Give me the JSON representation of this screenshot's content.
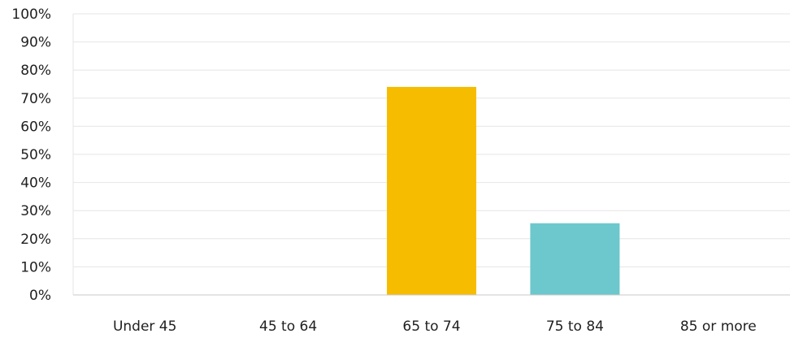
{
  "chart_data": {
    "type": "bar",
    "title": "",
    "xlabel": "",
    "ylabel": "",
    "categories": [
      "Under 45",
      "45 to 64",
      "65 to 74",
      "75 to 84",
      "85 or more"
    ],
    "values": [
      0,
      0,
      74,
      25.5,
      0
    ],
    "colors": [
      "#f6bd00",
      "#f6bd00",
      "#f6bd00",
      "#6cc8cc",
      "#6cc8cc"
    ],
    "ylim": [
      0,
      100
    ],
    "yticks": [
      {
        "value": 0,
        "label": "0%"
      },
      {
        "value": 10,
        "label": "10%"
      },
      {
        "value": 20,
        "label": "20%"
      },
      {
        "value": 30,
        "label": "30%"
      },
      {
        "value": 40,
        "label": "40%"
      },
      {
        "value": 50,
        "label": "50%"
      },
      {
        "value": 60,
        "label": "60%"
      },
      {
        "value": 70,
        "label": "70%"
      },
      {
        "value": 80,
        "label": "80%"
      },
      {
        "value": 90,
        "label": "90%"
      },
      {
        "value": 100,
        "label": "100%"
      }
    ],
    "grid": true,
    "legend": "none"
  }
}
